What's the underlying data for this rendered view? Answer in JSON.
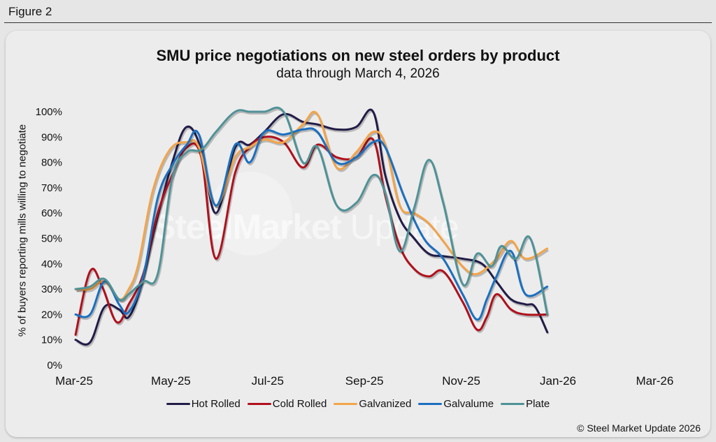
{
  "figure_label": "Figure 2",
  "copyright": "© Steel Market Update 2026",
  "watermark": {
    "bold": "SteelMarket",
    "light": " Update"
  },
  "colors": {
    "Hot Rolled": "#221c48",
    "Cold Rolled": "#b0101c",
    "Galvanized": "#f2a44a",
    "Galvalume": "#1b6fc0",
    "Plate": "#4f9297"
  },
  "chart_data": {
    "type": "line",
    "title": "SMU price negotiations on new steel orders by product",
    "subtitle": "data through March 4, 2026",
    "ylabel": "% of buyers reporting mills willing to negotiate",
    "xlabel": "",
    "ylim": [
      0,
      100
    ],
    "yticks": [
      "0%",
      "10%",
      "20%",
      "30%",
      "40%",
      "50%",
      "60%",
      "70%",
      "80%",
      "90%",
      "100%"
    ],
    "xticks": [
      "Mar-25",
      "May-25",
      "Jul-25",
      "Sep-25",
      "Nov-25",
      "Jan-26",
      "Mar-26"
    ],
    "grid": false,
    "legend_position": "bottom",
    "x_label": "months from Mar-25",
    "series": [
      {
        "name": "Hot Rolled",
        "points": [
          [
            0,
            10
          ],
          [
            0.3,
            9
          ],
          [
            0.6,
            23
          ],
          [
            0.9,
            22
          ],
          [
            1.1,
            19
          ],
          [
            1.35,
            31
          ],
          [
            1.65,
            55
          ],
          [
            2.0,
            80
          ],
          [
            2.3,
            94
          ],
          [
            2.6,
            85
          ],
          [
            2.9,
            60
          ],
          [
            3.3,
            86
          ],
          [
            3.6,
            87
          ],
          [
            3.9,
            92
          ],
          [
            4.3,
            99
          ],
          [
            4.7,
            96
          ],
          [
            5.0,
            95
          ],
          [
            5.4,
            93
          ],
          [
            5.8,
            94
          ],
          [
            6.15,
            100
          ],
          [
            6.4,
            75
          ],
          [
            6.7,
            58
          ],
          [
            7.0,
            50
          ],
          [
            7.3,
            44
          ],
          [
            7.6,
            43
          ],
          [
            8.0,
            42
          ],
          [
            8.4,
            40
          ],
          [
            8.7,
            33
          ],
          [
            9.0,
            26
          ],
          [
            9.3,
            24
          ],
          [
            9.5,
            23
          ],
          [
            9.75,
            13
          ]
        ]
      },
      {
        "name": "Cold Rolled",
        "points": [
          [
            0,
            12
          ],
          [
            0.3,
            37
          ],
          [
            0.55,
            31
          ],
          [
            0.85,
            17
          ],
          [
            1.1,
            24
          ],
          [
            1.4,
            36
          ],
          [
            1.7,
            60
          ],
          [
            2.0,
            75
          ],
          [
            2.3,
            86
          ],
          [
            2.6,
            82
          ],
          [
            2.9,
            42
          ],
          [
            3.3,
            76
          ],
          [
            3.6,
            86
          ],
          [
            3.9,
            90
          ],
          [
            4.3,
            88
          ],
          [
            4.7,
            78
          ],
          [
            5.0,
            87
          ],
          [
            5.4,
            82
          ],
          [
            5.8,
            82
          ],
          [
            6.15,
            89
          ],
          [
            6.4,
            67
          ],
          [
            6.7,
            47
          ],
          [
            7.0,
            38
          ],
          [
            7.3,
            35
          ],
          [
            7.6,
            37
          ],
          [
            8.0,
            25
          ],
          [
            8.3,
            14
          ],
          [
            8.5,
            19
          ],
          [
            8.7,
            28
          ],
          [
            9.0,
            22
          ],
          [
            9.3,
            20
          ],
          [
            9.75,
            20
          ]
        ]
      },
      {
        "name": "Galvanized",
        "points": [
          [
            0,
            30
          ],
          [
            0.3,
            30
          ],
          [
            0.6,
            33
          ],
          [
            0.9,
            26
          ],
          [
            1.1,
            30
          ],
          [
            1.3,
            40
          ],
          [
            1.6,
            69
          ],
          [
            1.95,
            85
          ],
          [
            2.3,
            88
          ],
          [
            2.55,
            86
          ],
          [
            2.9,
            63
          ],
          [
            3.3,
            82
          ],
          [
            3.6,
            86
          ],
          [
            3.9,
            89
          ],
          [
            4.3,
            88
          ],
          [
            4.7,
            95
          ],
          [
            5.0,
            99
          ],
          [
            5.4,
            78
          ],
          [
            5.8,
            84
          ],
          [
            6.15,
            92
          ],
          [
            6.4,
            87
          ],
          [
            6.7,
            63
          ],
          [
            7.0,
            60
          ],
          [
            7.3,
            56
          ],
          [
            7.6,
            49
          ],
          [
            8.0,
            39
          ],
          [
            8.3,
            36
          ],
          [
            8.7,
            42
          ],
          [
            9.0,
            49
          ],
          [
            9.3,
            42
          ],
          [
            9.75,
            46
          ]
        ]
      },
      {
        "name": "Galvalume",
        "points": [
          [
            0,
            20
          ],
          [
            0.3,
            20
          ],
          [
            0.6,
            33
          ],
          [
            0.9,
            24
          ],
          [
            1.1,
            21
          ],
          [
            1.4,
            35
          ],
          [
            1.7,
            66
          ],
          [
            2.0,
            79
          ],
          [
            2.3,
            87
          ],
          [
            2.55,
            91
          ],
          [
            2.9,
            63
          ],
          [
            3.3,
            87
          ],
          [
            3.6,
            80
          ],
          [
            3.9,
            92
          ],
          [
            4.3,
            91
          ],
          [
            4.7,
            93
          ],
          [
            5.0,
            92
          ],
          [
            5.4,
            80
          ],
          [
            5.8,
            82
          ],
          [
            6.15,
            88
          ],
          [
            6.4,
            86
          ],
          [
            6.8,
            66
          ],
          [
            7.2,
            50
          ],
          [
            7.6,
            42
          ],
          [
            8.0,
            28
          ],
          [
            8.3,
            18
          ],
          [
            8.5,
            26
          ],
          [
            8.7,
            35
          ],
          [
            9.0,
            45
          ],
          [
            9.3,
            28
          ],
          [
            9.75,
            31
          ]
        ]
      },
      {
        "name": "Plate",
        "points": [
          [
            0,
            30
          ],
          [
            0.3,
            31
          ],
          [
            0.6,
            34
          ],
          [
            0.9,
            26
          ],
          [
            1.1,
            28
          ],
          [
            1.4,
            33
          ],
          [
            1.7,
            36
          ],
          [
            2.0,
            74
          ],
          [
            2.3,
            84
          ],
          [
            2.6,
            85
          ],
          [
            2.9,
            92
          ],
          [
            3.3,
            100
          ],
          [
            3.6,
            100
          ],
          [
            3.9,
            100
          ],
          [
            4.3,
            100
          ],
          [
            4.7,
            80
          ],
          [
            5.0,
            86
          ],
          [
            5.4,
            63
          ],
          [
            5.8,
            64
          ],
          [
            6.15,
            75
          ],
          [
            6.4,
            68
          ],
          [
            6.7,
            45
          ],
          [
            7.0,
            62
          ],
          [
            7.3,
            81
          ],
          [
            7.6,
            64
          ],
          [
            8.0,
            32
          ],
          [
            8.3,
            44
          ],
          [
            8.6,
            39
          ],
          [
            8.8,
            47
          ],
          [
            9.1,
            42
          ],
          [
            9.4,
            50
          ],
          [
            9.75,
            20
          ]
        ]
      }
    ]
  }
}
